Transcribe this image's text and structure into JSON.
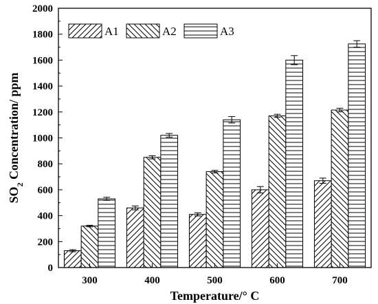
{
  "chart_data": {
    "type": "bar",
    "categories": [
      "300",
      "400",
      "500",
      "600",
      "700"
    ],
    "series": [
      {
        "name": "A1",
        "values": [
          130,
          460,
          410,
          600,
          670
        ],
        "errors": [
          8,
          15,
          12,
          25,
          20
        ],
        "pattern": "diag-fwd"
      },
      {
        "name": "A2",
        "values": [
          320,
          850,
          740,
          1170,
          1215
        ],
        "errors": [
          6,
          12,
          10,
          12,
          14
        ],
        "pattern": "diag-back"
      },
      {
        "name": "A3",
        "values": [
          530,
          1020,
          1140,
          1600,
          1725
        ],
        "errors": [
          12,
          14,
          25,
          35,
          25
        ],
        "pattern": "horizontal"
      }
    ],
    "xlabel": "Temperature/° C",
    "ylabel_main": "SO",
    "ylabel_sub": "2",
    "ylabel_rest": " Concentration/ ppm",
    "ylim": [
      0,
      2000
    ],
    "yticks": [
      0,
      200,
      400,
      600,
      800,
      1000,
      1200,
      1400,
      1600,
      1800,
      2000
    ],
    "legend_position": "top-left",
    "grid": false,
    "colors": {
      "bar_fill": "#ffffff",
      "stroke": "#000000"
    }
  }
}
